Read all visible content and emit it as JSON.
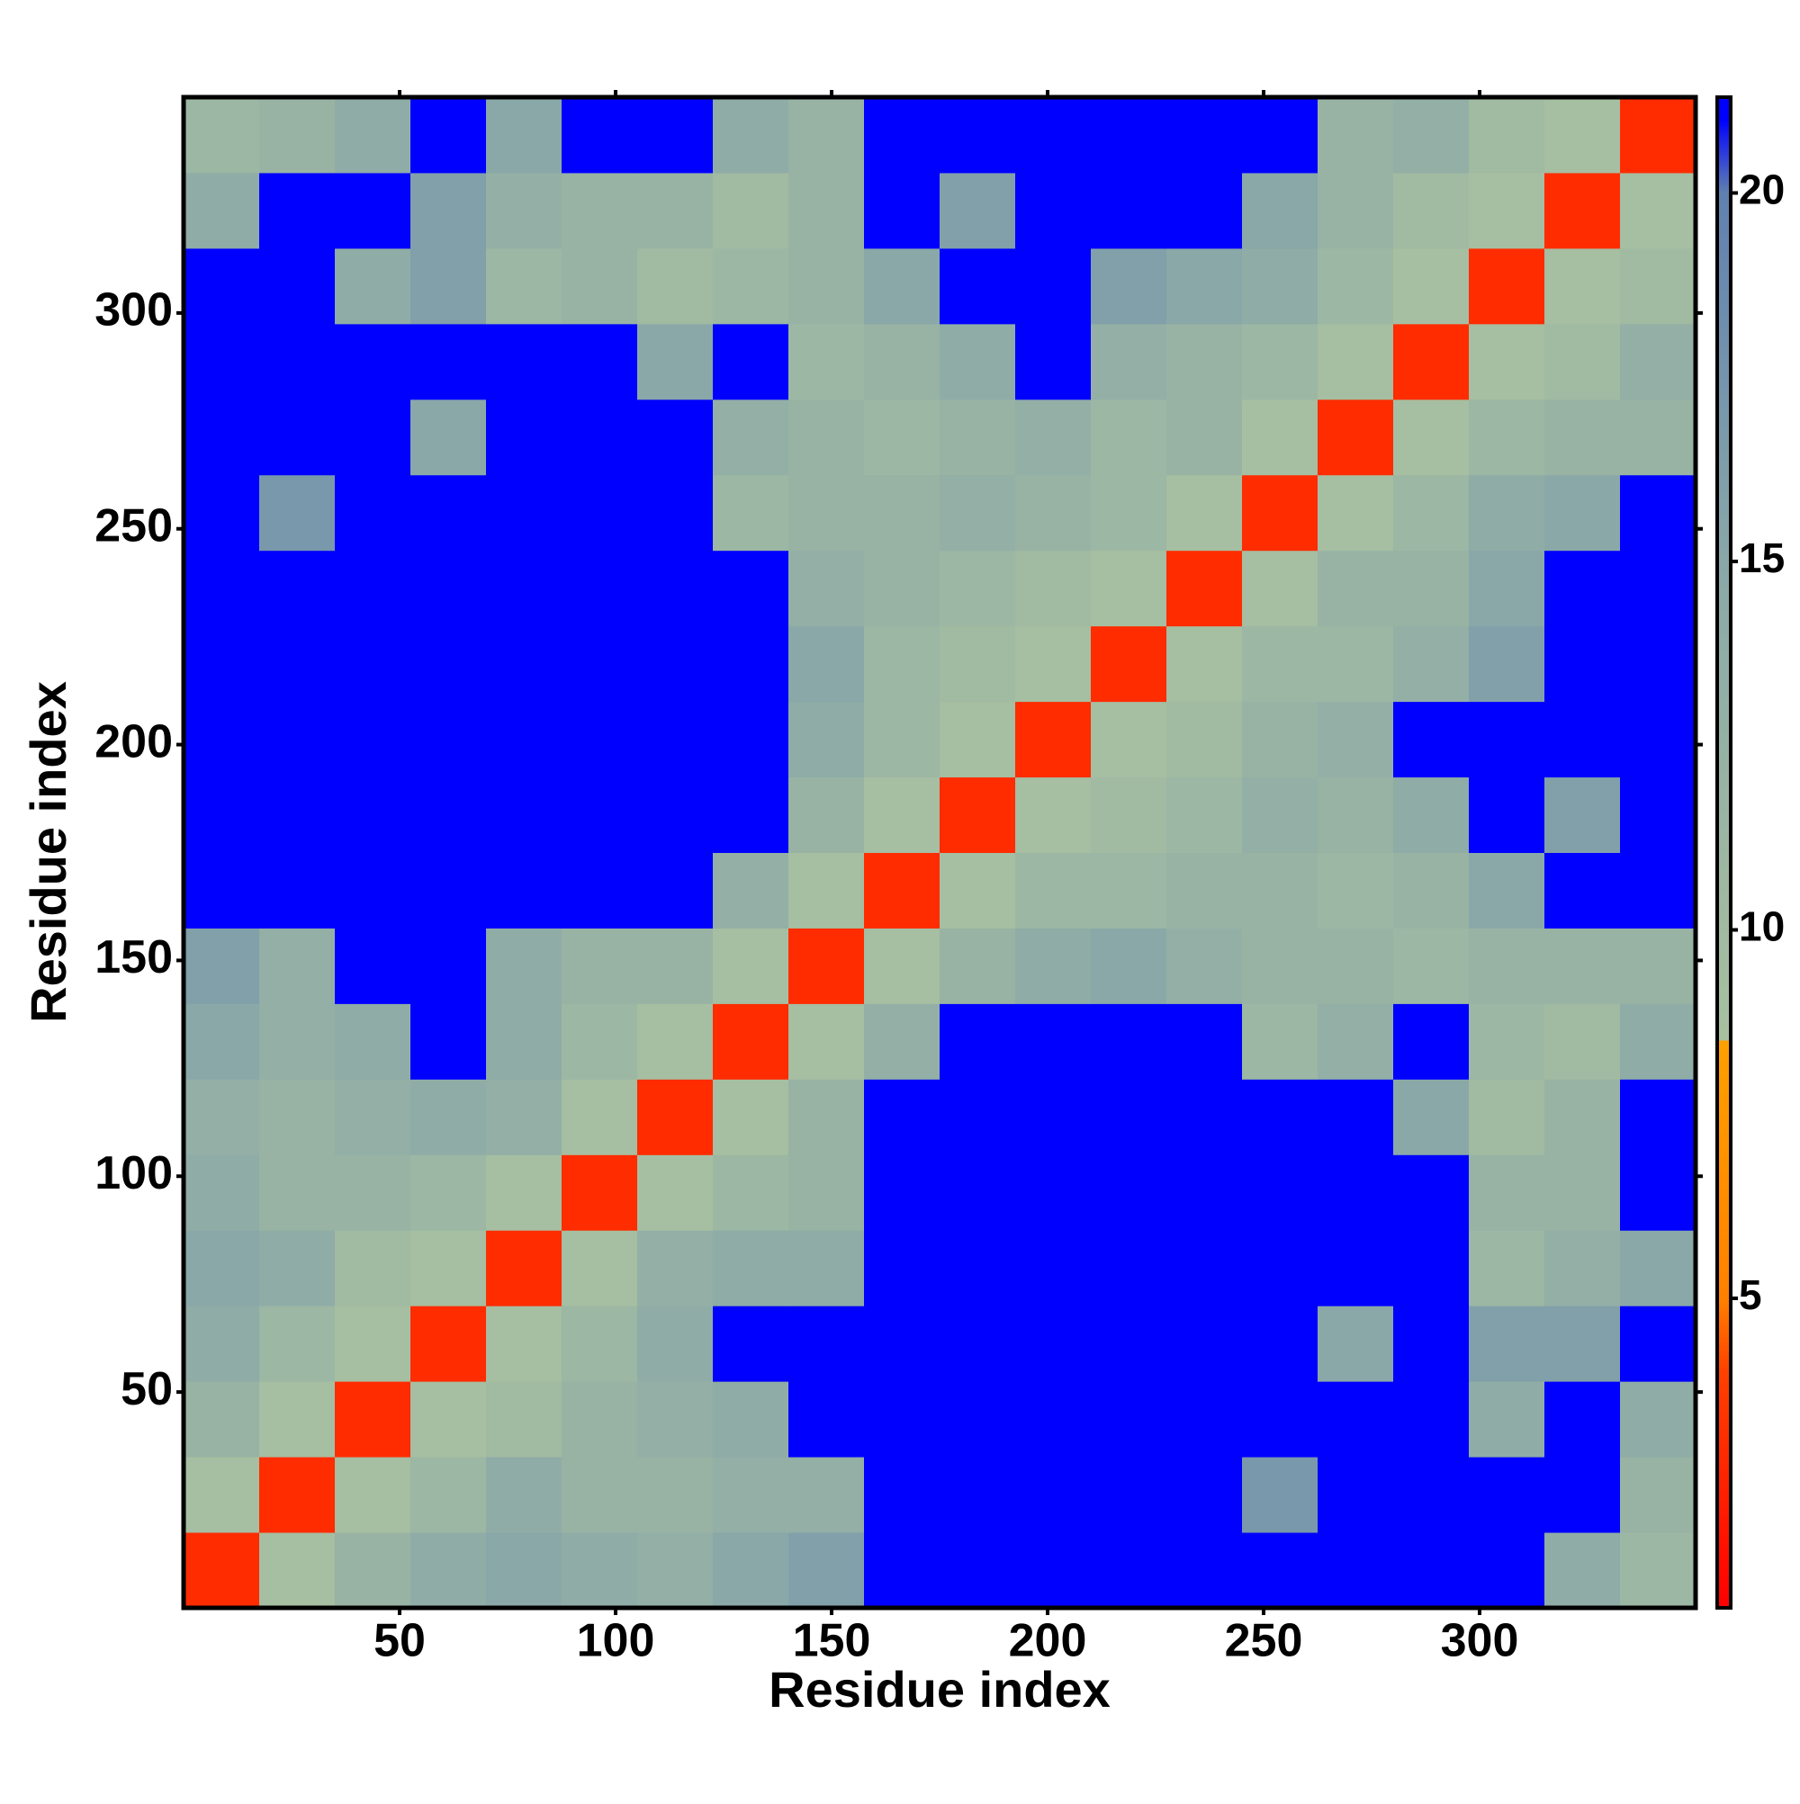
{
  "chart_data": {
    "type": "heatmap",
    "x_label": "Residue index",
    "y_label": "Residue index",
    "xbins": [
      0,
      17.5,
      35,
      52.5,
      70,
      87.5,
      105,
      122.5,
      140,
      157.5,
      175,
      192.5,
      210,
      227.5,
      245,
      262.5,
      280,
      297.5,
      315,
      332.5,
      350
    ],
    "ybins": [
      0,
      17.5,
      35,
      52.5,
      70,
      87.5,
      105,
      122.5,
      140,
      157.5,
      175,
      192.5,
      210,
      227.5,
      245,
      262.5,
      280,
      297.5,
      315,
      332.5,
      350
    ],
    "xlim": [
      0,
      350
    ],
    "ylim": [
      0,
      350
    ],
    "xticks": [
      50,
      100,
      150,
      200,
      250,
      300
    ],
    "yticks": [
      50,
      100,
      150,
      200,
      250,
      300
    ],
    "z": [
      [
        3,
        9,
        12,
        14,
        15,
        14,
        13,
        15,
        16,
        21,
        21,
        21,
        21,
        21,
        21,
        21,
        21,
        21,
        14,
        11
      ],
      [
        9,
        3,
        9,
        11,
        14,
        12,
        12,
        13,
        13,
        21,
        21,
        21,
        21,
        21,
        17,
        21,
        21,
        21,
        21,
        12
      ],
      [
        12,
        9,
        3,
        9,
        10,
        12,
        13,
        14,
        21,
        21,
        21,
        21,
        21,
        21,
        21,
        21,
        21,
        14,
        21,
        14
      ],
      [
        14,
        11,
        9,
        3,
        9,
        11,
        14,
        21,
        21,
        21,
        21,
        21,
        21,
        21,
        21,
        15,
        21,
        16,
        16,
        21
      ],
      [
        15,
        14,
        10,
        9,
        3,
        9,
        13,
        14,
        14,
        21,
        21,
        21,
        21,
        21,
        21,
        21,
        21,
        11,
        13,
        15
      ],
      [
        14,
        12,
        12,
        11,
        9,
        3,
        9,
        11,
        12,
        21,
        21,
        21,
        21,
        21,
        21,
        21,
        21,
        12,
        12,
        21
      ],
      [
        13,
        12,
        13,
        14,
        13,
        9,
        3,
        9,
        12,
        21,
        21,
        21,
        21,
        21,
        21,
        21,
        15,
        10,
        12,
        21
      ],
      [
        15,
        13,
        14,
        21,
        14,
        11,
        9,
        3,
        9,
        13,
        21,
        21,
        21,
        21,
        11,
        13,
        21,
        11,
        10,
        14
      ],
      [
        16,
        13,
        21,
        21,
        14,
        12,
        12,
        9,
        3,
        9,
        12,
        14,
        15,
        13,
        12,
        12,
        11,
        12,
        12,
        12
      ],
      [
        21,
        21,
        21,
        21,
        21,
        21,
        21,
        13,
        9,
        3,
        9,
        11,
        11,
        12,
        12,
        11,
        12,
        15,
        21,
        21
      ],
      [
        21,
        21,
        21,
        21,
        21,
        21,
        21,
        21,
        12,
        9,
        3,
        9,
        10,
        11,
        13,
        12,
        14,
        21,
        16,
        21
      ],
      [
        21,
        21,
        21,
        21,
        21,
        21,
        21,
        21,
        14,
        11,
        9,
        3,
        9,
        10,
        12,
        13,
        21,
        21,
        21,
        21
      ],
      [
        21,
        21,
        21,
        21,
        21,
        21,
        21,
        21,
        15,
        11,
        10,
        9,
        3,
        9,
        11,
        11,
        13,
        16,
        21,
        21
      ],
      [
        21,
        21,
        21,
        21,
        21,
        21,
        21,
        21,
        13,
        12,
        11,
        10,
        9,
        3,
        9,
        12,
        12,
        15,
        21,
        21
      ],
      [
        21,
        17,
        21,
        21,
        21,
        21,
        21,
        11,
        12,
        12,
        13,
        12,
        11,
        9,
        3,
        9,
        11,
        14,
        15,
        21
      ],
      [
        21,
        21,
        21,
        15,
        21,
        21,
        21,
        13,
        12,
        11,
        12,
        13,
        11,
        12,
        9,
        3,
        9,
        11,
        12,
        12
      ],
      [
        21,
        21,
        21,
        21,
        21,
        21,
        15,
        21,
        11,
        12,
        14,
        21,
        13,
        12,
        11,
        9,
        3,
        9,
        10,
        13
      ],
      [
        21,
        21,
        14,
        16,
        11,
        12,
        10,
        11,
        12,
        15,
        21,
        21,
        16,
        15,
        14,
        11,
        9,
        3,
        9,
        10
      ],
      [
        14,
        21,
        21,
        16,
        13,
        12,
        12,
        10,
        12,
        21,
        16,
        21,
        21,
        21,
        15,
        12,
        10,
        9,
        3,
        9
      ],
      [
        11,
        12,
        14,
        21,
        15,
        21,
        21,
        14,
        12,
        21,
        21,
        21,
        21,
        21,
        21,
        12,
        13,
        10,
        9,
        3
      ]
    ],
    "colorbar": {
      "lim": [
        0.8,
        21.3
      ],
      "ticks": [
        5,
        10,
        15,
        20
      ],
      "colorscale": [
        [
          0.8,
          "#ff0000"
        ],
        [
          4,
          "#ff4000"
        ],
        [
          5,
          "#ff8000"
        ],
        [
          8.5,
          "#ffa000"
        ],
        [
          8.5,
          "#a8c0a0"
        ],
        [
          15,
          "#8aa8a8"
        ],
        [
          20,
          "#6080b0"
        ],
        [
          21,
          "#0000ff"
        ],
        [
          21.3,
          "#0000ff"
        ]
      ]
    }
  }
}
